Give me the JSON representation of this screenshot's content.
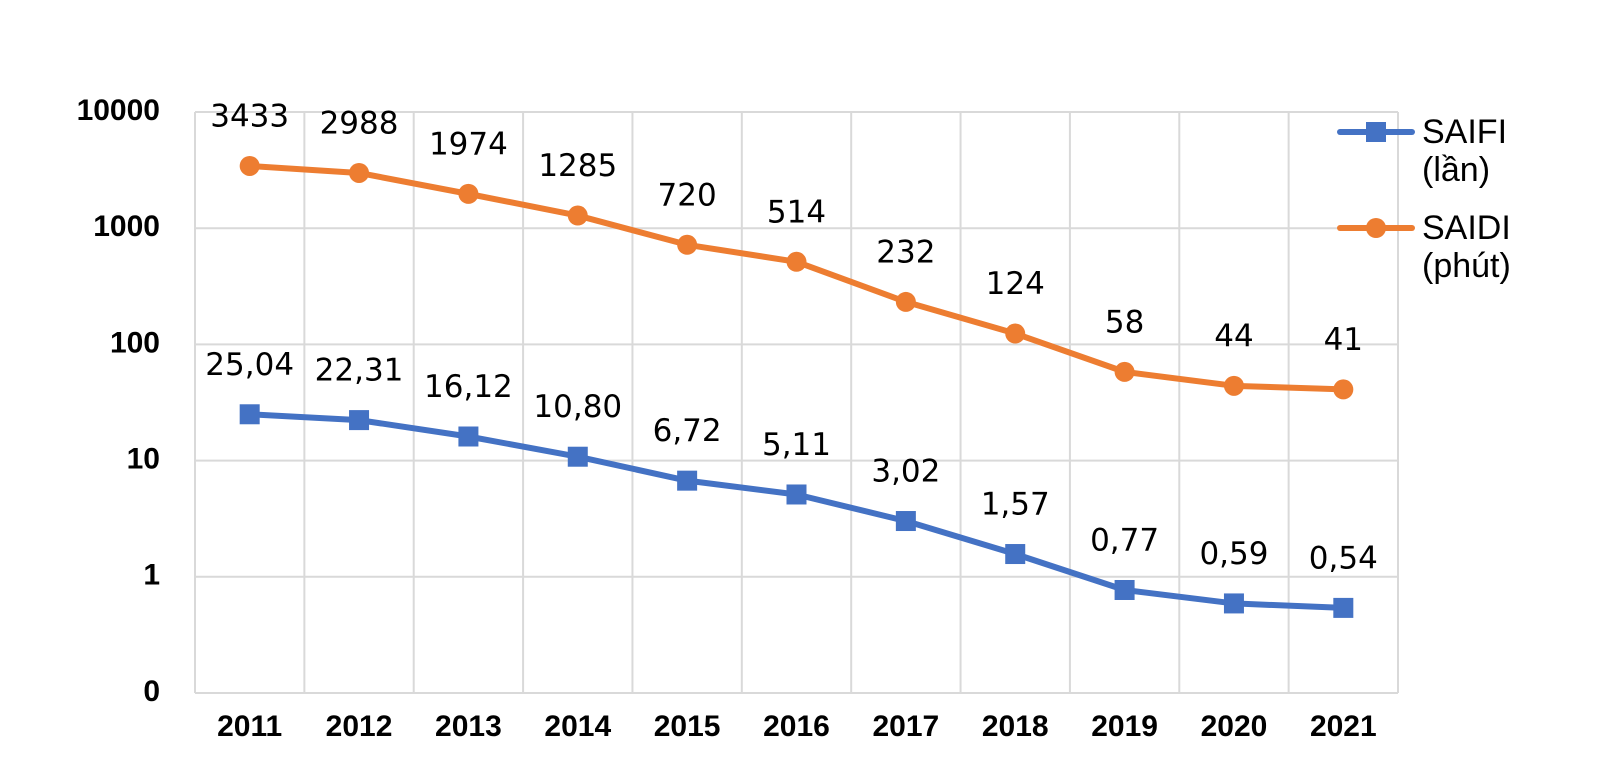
{
  "chart_data": {
    "type": "line",
    "categories": [
      "2011",
      "2012",
      "2013",
      "2014",
      "2015",
      "2016",
      "2017",
      "2018",
      "2019",
      "2020",
      "2021"
    ],
    "series": [
      {
        "name": "SAIFI (lần)",
        "color": "#4472c4",
        "marker": "square",
        "values": [
          25.04,
          22.31,
          16.12,
          10.8,
          6.72,
          5.11,
          3.02,
          1.57,
          0.77,
          0.59,
          0.54
        ],
        "value_labels": [
          "25,04",
          "22,31",
          "16,12",
          "10,80",
          "6,72",
          "5,11",
          "3,02",
          "1,57",
          "0,77",
          "0,59",
          "0,54"
        ]
      },
      {
        "name": "SAIDI (phút)",
        "color": "#ed7d31",
        "marker": "circle",
        "values": [
          3433,
          2988,
          1974,
          1285,
          720,
          514,
          232,
          124,
          58,
          44,
          41
        ]
      }
    ],
    "ylim": [
      0.1,
      10000
    ],
    "yticks": [
      {
        "value": 0.1,
        "label": "0"
      },
      1,
      10,
      100,
      1000,
      10000
    ],
    "log_scale_y": true,
    "grid": true,
    "data_labels": true,
    "legend": "right"
  }
}
